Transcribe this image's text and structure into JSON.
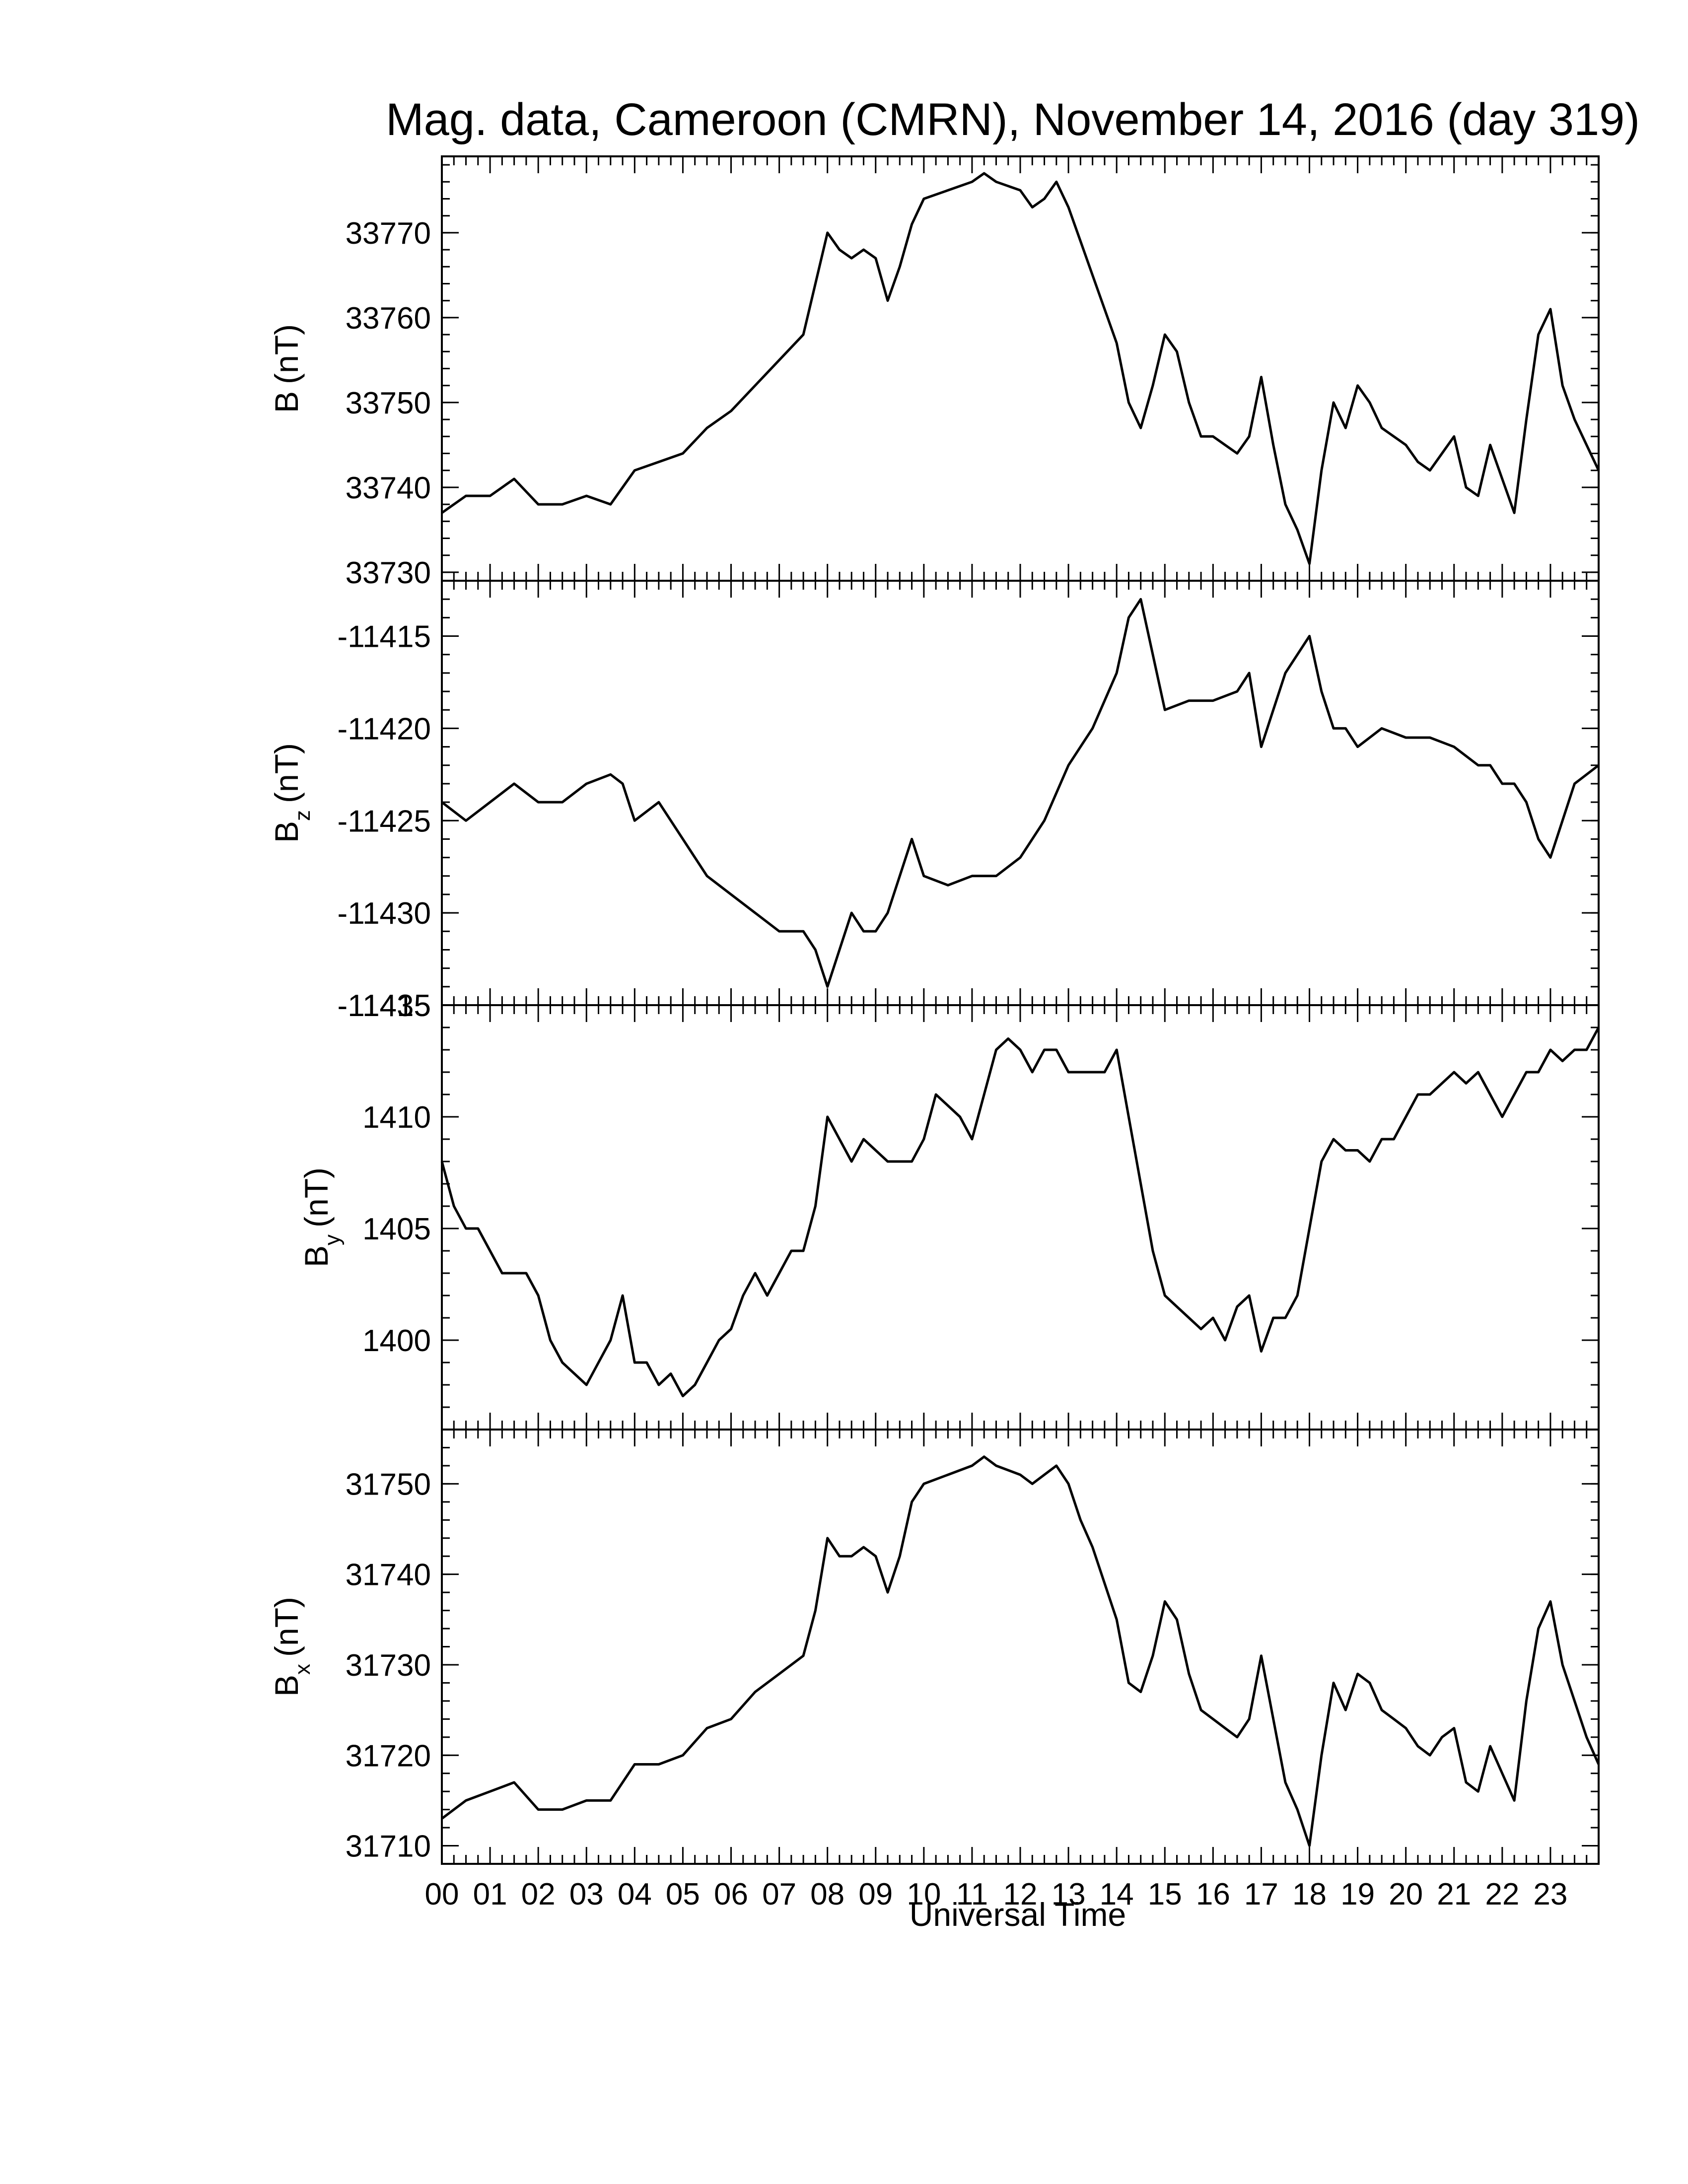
{
  "chart_data": {
    "type": "line",
    "title": "Mag. data, Cameroon (CMRN), November 14, 2016 (day 319)",
    "xlabel": "Universal Time",
    "x_ticks": [
      "00",
      "01",
      "02",
      "03",
      "04",
      "05",
      "06",
      "07",
      "08",
      "09",
      "10",
      "11",
      "12",
      "13",
      "14",
      "15",
      "16",
      "17",
      "18",
      "19",
      "20",
      "21",
      "22",
      "23"
    ],
    "xlim": [
      0,
      24
    ],
    "grid": false,
    "panels": [
      {
        "key": "B",
        "ylabel_main": "B",
        "ylabel_sub": "",
        "ylabel_unit": "(nT)",
        "ylim": [
          33729,
          33779
        ],
        "yticks": [
          33730,
          33740,
          33750,
          33760,
          33770
        ],
        "series": [
          {
            "x": [
              0,
              0.5,
              1,
              1.5,
              2,
              2.5,
              3,
              3.5,
              4,
              4.5,
              5,
              5.5,
              6,
              6.5,
              7,
              7.5,
              7.75,
              8,
              8.25,
              8.5,
              8.75,
              9,
              9.25,
              9.5,
              9.75,
              10,
              10.5,
              11,
              11.25,
              11.5,
              12,
              12.25,
              12.5,
              12.75,
              13,
              13.25,
              13.5,
              13.75,
              14,
              14.25,
              14.5,
              14.75,
              15,
              15.25,
              15.5,
              15.75,
              16,
              16.25,
              16.5,
              16.75,
              17,
              17.25,
              17.5,
              17.75,
              18,
              18.25,
              18.5,
              18.75,
              19,
              19.25,
              19.5,
              19.75,
              20,
              20.25,
              20.5,
              20.75,
              21,
              21.25,
              21.5,
              21.75,
              22,
              22.25,
              22.5,
              22.75,
              23,
              23.25,
              23.5,
              23.75,
              24
            ],
            "y": [
              33737,
              33739,
              33739,
              33741,
              33738,
              33738,
              33739,
              33738,
              33742,
              33743,
              33744,
              33747,
              33749,
              33752,
              33755,
              33758,
              33764,
              33770,
              33768,
              33767,
              33768,
              33767,
              33762,
              33766,
              33771,
              33774,
              33775,
              33776,
              33777,
              33776,
              33775,
              33773,
              33774,
              33776,
              33773,
              33769,
              33765,
              33761,
              33757,
              33750,
              33747,
              33752,
              33758,
              33756,
              33750,
              33746,
              33746,
              33745,
              33744,
              33746,
              33753,
              33745,
              33738,
              33735,
              33731,
              33742,
              33750,
              33747,
              33752,
              33750,
              33747,
              33746,
              33745,
              33743,
              33742,
              33744,
              33746,
              33740,
              33739,
              33745,
              33741,
              33737,
              33748,
              33758,
              33761,
              33752,
              33748,
              33745,
              33742
            ]
          }
        ]
      },
      {
        "key": "Bz",
        "ylabel_main": "B",
        "ylabel_sub": "z",
        "ylabel_unit": "(nT)",
        "ylim": [
          -11435,
          -11412
        ],
        "yticks": [
          -11415,
          -11420,
          -11425,
          -11430,
          -11435
        ],
        "series": [
          {
            "x": [
              0,
              0.5,
              1,
              1.5,
              2,
              2.5,
              3,
              3.5,
              3.75,
              4,
              4.5,
              5,
              5.5,
              6,
              6.5,
              7,
              7.5,
              7.75,
              8,
              8.25,
              8.5,
              8.75,
              9,
              9.25,
              9.5,
              9.75,
              10,
              10.5,
              11,
              11.5,
              12,
              12.5,
              13,
              13.5,
              14,
              14.25,
              14.5,
              14.75,
              15,
              15.5,
              16,
              16.5,
              16.75,
              17,
              17.25,
              17.5,
              17.75,
              18,
              18.25,
              18.5,
              18.75,
              19,
              19.25,
              19.5,
              20,
              20.5,
              21,
              21.5,
              21.75,
              22,
              22.25,
              22.5,
              22.75,
              23,
              23.5,
              24
            ],
            "y": [
              -11424,
              -11425,
              -11424,
              -11423,
              -11424,
              -11424,
              -11423,
              -11422.5,
              -11423,
              -11425,
              -11424,
              -11426,
              -11428,
              -11429,
              -11430,
              -11431,
              -11431,
              -11432,
              -11434,
              -11432,
              -11430,
              -11431,
              -11431,
              -11430,
              -11428,
              -11426,
              -11428,
              -11428.5,
              -11428,
              -11428,
              -11427,
              -11425,
              -11422,
              -11420,
              -11417,
              -11414,
              -11413,
              -11416,
              -11419,
              -11418.5,
              -11418.5,
              -11418,
              -11417,
              -11421,
              -11419,
              -11417,
              -11416,
              -11415,
              -11418,
              -11420,
              -11420,
              -11421,
              -11420.5,
              -11420,
              -11420.5,
              -11420.5,
              -11421,
              -11422,
              -11422,
              -11423,
              -11423,
              -11424,
              -11426,
              -11427,
              -11423,
              -11422
            ]
          }
        ]
      },
      {
        "key": "By",
        "ylabel_main": "B",
        "ylabel_sub": "y",
        "ylabel_unit": "(nT)",
        "ylim": [
          1396,
          1415
        ],
        "yticks": [
          1400,
          1405,
          1410,
          1415
        ],
        "series": [
          {
            "x": [
              0,
              0.25,
              0.5,
              0.75,
              1,
              1.25,
              1.5,
              1.75,
              2,
              2.25,
              2.5,
              2.75,
              3,
              3.25,
              3.5,
              3.75,
              4,
              4.25,
              4.5,
              4.75,
              5,
              5.25,
              5.5,
              5.75,
              6,
              6.25,
              6.5,
              6.75,
              7,
              7.25,
              7.5,
              7.75,
              8,
              8.25,
              8.5,
              8.75,
              9,
              9.25,
              9.5,
              9.75,
              10,
              10.25,
              10.5,
              10.75,
              11,
              11.25,
              11.5,
              11.75,
              12,
              12.25,
              12.5,
              12.75,
              13,
              13.25,
              13.5,
              13.75,
              14,
              14.25,
              14.5,
              14.75,
              15,
              15.25,
              15.5,
              15.75,
              16,
              16.25,
              16.5,
              16.75,
              17,
              17.25,
              17.5,
              17.75,
              18,
              18.25,
              18.5,
              18.75,
              19,
              19.25,
              19.5,
              19.75,
              20,
              20.25,
              20.5,
              20.75,
              21,
              21.25,
              21.5,
              21.75,
              22,
              22.25,
              22.5,
              22.75,
              23,
              23.25,
              23.5,
              23.75,
              24
            ],
            "y": [
              1408,
              1406,
              1405,
              1405,
              1404,
              1403,
              1403,
              1403,
              1402,
              1400,
              1399,
              1398.5,
              1398,
              1399,
              1400,
              1402,
              1399,
              1399,
              1398,
              1398.5,
              1397.5,
              1398,
              1399,
              1400,
              1400.5,
              1402,
              1403,
              1402,
              1403,
              1404,
              1404,
              1406,
              1410,
              1409,
              1408,
              1409,
              1408.5,
              1408,
              1408,
              1408,
              1409,
              1411,
              1410.5,
              1410,
              1409,
              1411,
              1413,
              1413.5,
              1413,
              1412,
              1413,
              1413,
              1412,
              1412,
              1412,
              1412,
              1413,
              1410,
              1407,
              1404,
              1402,
              1401.5,
              1401,
              1400.5,
              1401,
              1400,
              1401.5,
              1402,
              1399.5,
              1401,
              1401,
              1402,
              1405,
              1408,
              1409,
              1408.5,
              1408.5,
              1408,
              1409,
              1409,
              1410,
              1411,
              1411,
              1411.5,
              1412,
              1411.5,
              1412,
              1411,
              1410,
              1411,
              1412,
              1412,
              1413,
              1412.5,
              1413,
              1413,
              1414
            ]
          }
        ]
      },
      {
        "key": "Bx",
        "ylabel_main": "B",
        "ylabel_sub": "x",
        "ylabel_unit": "(nT)",
        "ylim": [
          31708,
          31756
        ],
        "yticks": [
          31710,
          31720,
          31730,
          31740,
          31750
        ],
        "series": [
          {
            "x": [
              0,
              0.5,
              1,
              1.5,
              2,
              2.5,
              3,
              3.5,
              4,
              4.5,
              5,
              5.5,
              6,
              6.5,
              7,
              7.5,
              7.75,
              8,
              8.25,
              8.5,
              8.75,
              9,
              9.25,
              9.5,
              9.75,
              10,
              10.5,
              11,
              11.25,
              11.5,
              12,
              12.25,
              12.5,
              12.75,
              13,
              13.25,
              13.5,
              13.75,
              14,
              14.25,
              14.5,
              14.75,
              15,
              15.25,
              15.5,
              15.75,
              16,
              16.25,
              16.5,
              16.75,
              17,
              17.25,
              17.5,
              17.75,
              18,
              18.25,
              18.5,
              18.75,
              19,
              19.25,
              19.5,
              19.75,
              20,
              20.25,
              20.5,
              20.75,
              21,
              21.25,
              21.5,
              21.75,
              22,
              22.25,
              22.5,
              22.75,
              23,
              23.25,
              23.5,
              23.75,
              24
            ],
            "y": [
              31713,
              31715,
              31716,
              31717,
              31714,
              31714,
              31715,
              31715,
              31719,
              31719,
              31720,
              31723,
              31724,
              31727,
              31729,
              31731,
              31736,
              31744,
              31742,
              31742,
              31743,
              31742,
              31738,
              31742,
              31748,
              31750,
              31751,
              31752,
              31753,
              31752,
              31751,
              31750,
              31751,
              31752,
              31750,
              31746,
              31743,
              31739,
              31735,
              31728,
              31727,
              31731,
              31737,
              31735,
              31729,
              31725,
              31724,
              31723,
              31722,
              31724,
              31731,
              31724,
              31717,
              31714,
              31710,
              31720,
              31728,
              31725,
              31729,
              31728,
              31725,
              31724,
              31723,
              31721,
              31720,
              31722,
              31723,
              31717,
              31716,
              31721,
              31718,
              31715,
              31726,
              31734,
              31737,
              31730,
              31726,
              31722,
              31719
            ]
          }
        ]
      }
    ]
  }
}
